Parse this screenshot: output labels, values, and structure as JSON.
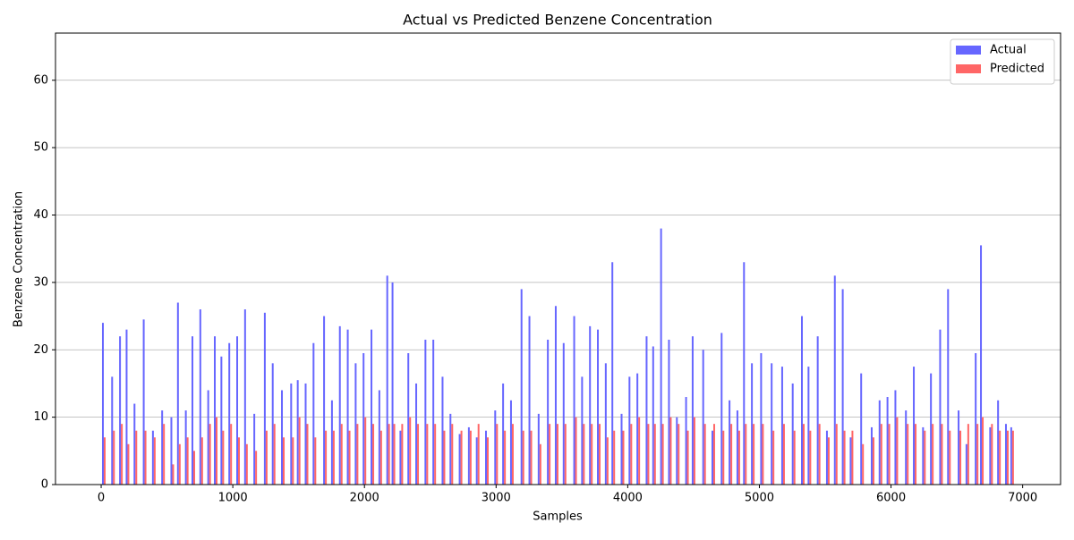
{
  "chart_data": {
    "type": "bar",
    "title": "Actual vs Predicted Benzene Concentration",
    "x_label": "Samples",
    "y_label": "Benzene Concentration",
    "x": [
      20,
      90,
      150,
      200,
      260,
      330,
      400,
      470,
      540,
      590,
      650,
      700,
      760,
      820,
      870,
      920,
      980,
      1040,
      1100,
      1170,
      1250,
      1310,
      1380,
      1450,
      1500,
      1560,
      1620,
      1700,
      1760,
      1820,
      1880,
      1940,
      2000,
      2060,
      2120,
      2180,
      2220,
      2280,
      2340,
      2400,
      2470,
      2530,
      2600,
      2660,
      2730,
      2800,
      2860,
      2930,
      3000,
      3060,
      3120,
      3200,
      3260,
      3330,
      3400,
      3460,
      3520,
      3600,
      3660,
      3720,
      3780,
      3840,
      3890,
      3960,
      4020,
      4080,
      4150,
      4200,
      4260,
      4320,
      4380,
      4450,
      4500,
      4580,
      4650,
      4720,
      4780,
      4840,
      4890,
      4950,
      5020,
      5100,
      5180,
      5260,
      5330,
      5380,
      5450,
      5520,
      5580,
      5640,
      5700,
      5780,
      5860,
      5920,
      5980,
      6040,
      6120,
      6180,
      6250,
      6310,
      6380,
      6440,
      6520,
      6580,
      6650,
      6690,
      6760,
      6820,
      6880,
      6920
    ],
    "series": [
      {
        "name": "Actual",
        "color": "#6666ff",
        "values": [
          24,
          16,
          22,
          23,
          12,
          24.5,
          8,
          11,
          10,
          27,
          11,
          22,
          26,
          14,
          22,
          19,
          21,
          22,
          26,
          10.5,
          25.5,
          18,
          14,
          15,
          15.5,
          15,
          21,
          25,
          12.5,
          23.5,
          23,
          18,
          19.5,
          23,
          14,
          31,
          30,
          8,
          19.5,
          15,
          21.5,
          21.5,
          16,
          10.5,
          7.5,
          8.5,
          7,
          8,
          11,
          15,
          12.5,
          29,
          25,
          10.5,
          21.5,
          26.5,
          21,
          25,
          16,
          23.5,
          23,
          18,
          33,
          10.5,
          16,
          16.5,
          22,
          20.5,
          38,
          21.5,
          10,
          13,
          22,
          20,
          8,
          22.5,
          12.5,
          11,
          33,
          18,
          19.5,
          18,
          17.5,
          15,
          25,
          17.5,
          22,
          8,
          31,
          29,
          7,
          16.5,
          8.5,
          12.5,
          13,
          14,
          11,
          17.5,
          8.5,
          16.5,
          23,
          29,
          11,
          6,
          19.5,
          35.5,
          8.5,
          12.5,
          9,
          8.5
        ]
      },
      {
        "name": "Predicted",
        "color": "#ff6666",
        "values": [
          7,
          8,
          9,
          6,
          8,
          8,
          7,
          9,
          3,
          6,
          7,
          5,
          7,
          9,
          10,
          8,
          9,
          7,
          6,
          5,
          8,
          9,
          7,
          7,
          10,
          9,
          7,
          8,
          8,
          9,
          8,
          9,
          10,
          9,
          8,
          9,
          9,
          9,
          10,
          9,
          9,
          9,
          8,
          9,
          8,
          8,
          9,
          7,
          9,
          8,
          9,
          8,
          8,
          6,
          9,
          9,
          9,
          10,
          9,
          9,
          9,
          7,
          8,
          8,
          9,
          10,
          9,
          9,
          9,
          10,
          9,
          8,
          10,
          9,
          9,
          8,
          9,
          8,
          9,
          9,
          9,
          8,
          9,
          8,
          9,
          8,
          9,
          7,
          9,
          8,
          8,
          6,
          7,
          9,
          9,
          10,
          9,
          9,
          8,
          9,
          9,
          8,
          8,
          9,
          9,
          10,
          9,
          8,
          8,
          8
        ]
      }
    ],
    "xlim": [
      -347,
      7288
    ],
    "ylim": [
      0,
      67
    ],
    "xticks": [
      0,
      1000,
      2000,
      3000,
      4000,
      5000,
      6000,
      7000
    ],
    "yticks": [
      0,
      10,
      20,
      30,
      40,
      50,
      60
    ],
    "grid": true,
    "legend": "upper right"
  }
}
